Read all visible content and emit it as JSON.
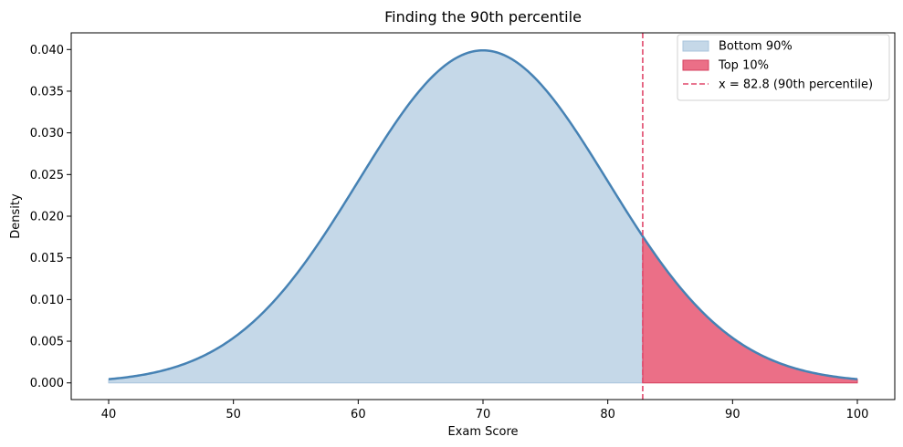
{
  "chart_data": {
    "type": "area",
    "title": "Finding the 90th percentile",
    "xlabel": "Exam Score",
    "ylabel": "Density",
    "distribution": {
      "name": "normal",
      "mean": 70,
      "sd": 10
    },
    "x_range": [
      40,
      100
    ],
    "xlim": [
      37,
      103
    ],
    "ylim": [
      -0.002,
      0.042
    ],
    "xticks": [
      40,
      50,
      60,
      70,
      80,
      90,
      100
    ],
    "xtick_labels": [
      "40",
      "50",
      "60",
      "70",
      "80",
      "90",
      "100"
    ],
    "yticks": [
      0.0,
      0.005,
      0.01,
      0.015,
      0.02,
      0.025,
      0.03,
      0.035,
      0.04
    ],
    "ytick_labels": [
      "0.000",
      "0.005",
      "0.010",
      "0.015",
      "0.020",
      "0.025",
      "0.030",
      "0.035",
      "0.040"
    ],
    "threshold": 82.8,
    "grid": false,
    "legend_position": "top-right",
    "series": [
      {
        "name": "Bottom 90%",
        "kind": "fill",
        "x_from": 40,
        "x_to": 82.8,
        "color": "#c5d8e8",
        "edge": "#a9c4dc"
      },
      {
        "name": "Top 10%",
        "kind": "fill",
        "x_from": 82.8,
        "x_to": 100,
        "color": "#eb6f87",
        "edge": "#d6405f"
      },
      {
        "name": "x = 82.8 (90th percentile)",
        "kind": "vline",
        "x": 82.8,
        "color": "#e0476a",
        "dash": true
      }
    ],
    "curve_color": "#4682b4",
    "sample_points": [
      {
        "x": 40,
        "y": 0.00044
      },
      {
        "x": 50,
        "y": 0.0054
      },
      {
        "x": 60,
        "y": 0.0242
      },
      {
        "x": 70,
        "y": 0.0399
      },
      {
        "x": 80,
        "y": 0.0242
      },
      {
        "x": 82.8,
        "y": 0.0176
      },
      {
        "x": 90,
        "y": 0.0054
      },
      {
        "x": 100,
        "y": 0.00044
      }
    ]
  }
}
